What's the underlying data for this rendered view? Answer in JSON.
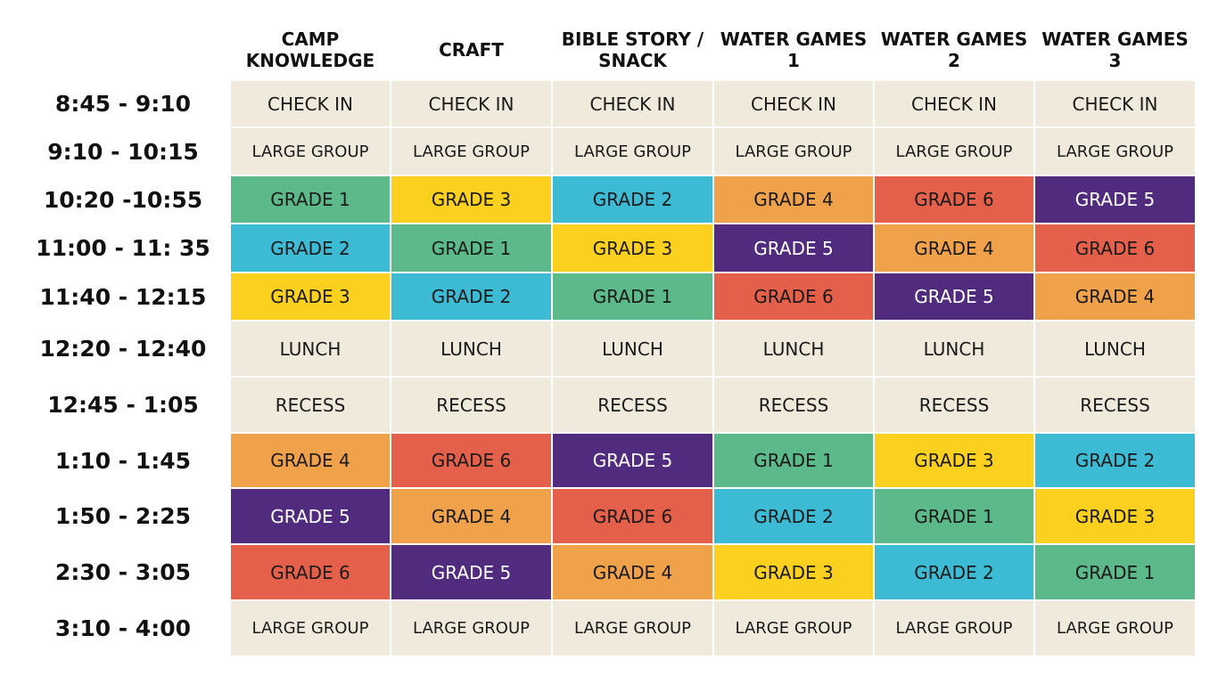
{
  "headers": [
    "CAMP\nKNOWLEDGE",
    "CRAFT",
    "BIBLE STORY /\nSNACK",
    "WATER GAMES\n1",
    "WATER GAMES\n2",
    "WATER GAMES\n3"
  ],
  "palette": {
    "neutral": "#f0eadc",
    "grade1": "#5cb98a",
    "grade2": "#3dbbd5",
    "grade3": "#fbd01e",
    "grade4": "#f0a24b",
    "grade5": "#512c7e",
    "grade6": "#e5604b"
  },
  "rows": [
    {
      "time": "8:45 - 9:10",
      "cells": [
        "CHECK IN",
        "CHECK IN",
        "CHECK IN",
        "CHECK IN",
        "CHECK IN",
        "CHECK IN"
      ]
    },
    {
      "time": "9:10 - 10:15",
      "cells": [
        "LARGE GROUP",
        "LARGE GROUP",
        "LARGE GROUP",
        "LARGE GROUP",
        "LARGE GROUP",
        "LARGE GROUP"
      ]
    },
    {
      "time": "10:20 -10:55",
      "cells": [
        "GRADE 1",
        "GRADE 3",
        "GRADE 2",
        "GRADE 4",
        "GRADE 6",
        "GRADE 5"
      ]
    },
    {
      "time": "11:00 - 11: 35",
      "cells": [
        "GRADE 2",
        "GRADE 1",
        "GRADE 3",
        "GRADE 5",
        "GRADE 4",
        "GRADE 6"
      ]
    },
    {
      "time": "11:40 - 12:15",
      "cells": [
        "GRADE 3",
        "GRADE 2",
        "GRADE 1",
        "GRADE 6",
        "GRADE 5",
        "GRADE 4"
      ]
    },
    {
      "time": "12:20 - 12:40",
      "cells": [
        "LUNCH",
        "LUNCH",
        "LUNCH",
        "LUNCH",
        "LUNCH",
        "LUNCH"
      ]
    },
    {
      "time": "12:45 - 1:05",
      "cells": [
        "RECESS",
        "RECESS",
        "RECESS",
        "RECESS",
        "RECESS",
        "RECESS"
      ]
    },
    {
      "time": "1:10 - 1:45",
      "cells": [
        "GRADE 4",
        "GRADE 6",
        "GRADE 5",
        "GRADE 1",
        "GRADE 3",
        "GRADE 2"
      ]
    },
    {
      "time": "1:50 - 2:25",
      "cells": [
        "GRADE 5",
        "GRADE 4",
        "GRADE 6",
        "GRADE 2",
        "GRADE 1",
        "GRADE 3"
      ]
    },
    {
      "time": "2:30 - 3:05",
      "cells": [
        "GRADE 6",
        "GRADE 5",
        "GRADE 4",
        "GRADE 3",
        "GRADE 2",
        "GRADE 1"
      ]
    },
    {
      "time": "3:10 - 4:00",
      "cells": [
        "LARGE GROUP",
        "LARGE GROUP",
        "LARGE GROUP",
        "LARGE GROUP",
        "LARGE GROUP",
        "LARGE GROUP"
      ]
    }
  ]
}
